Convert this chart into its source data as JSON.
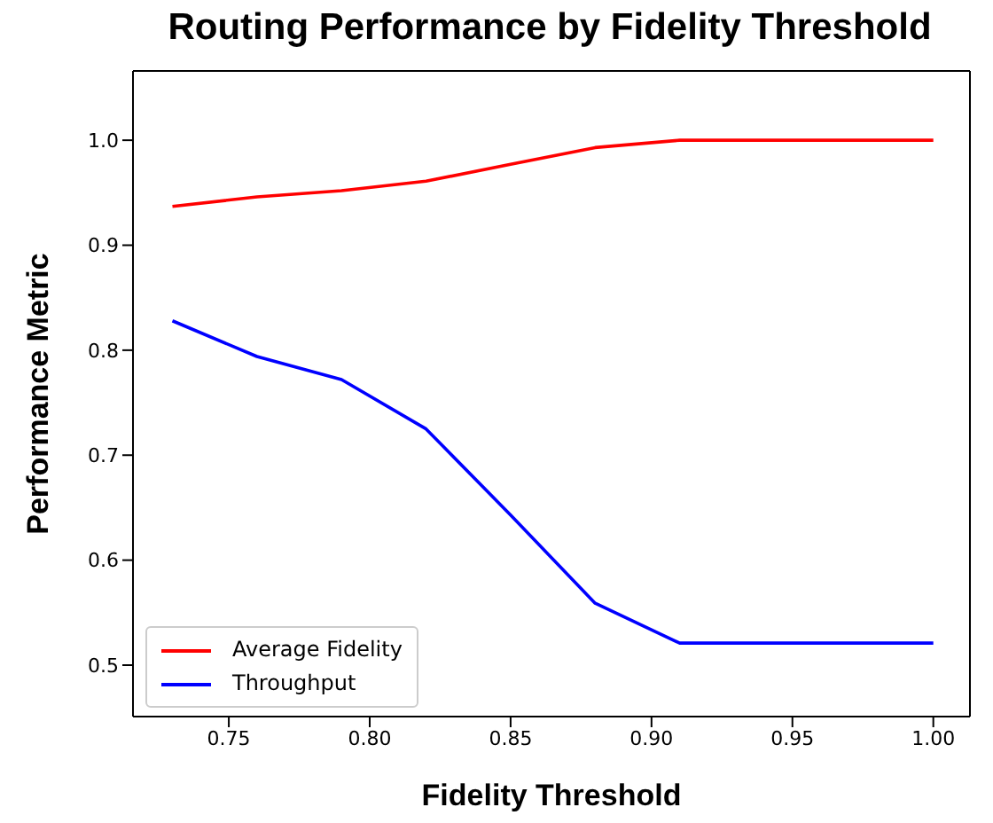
{
  "chart_data": {
    "type": "line",
    "title": "Routing Performance by Fidelity Threshold",
    "xlabel": "Fidelity Threshold",
    "ylabel": "Performance Metric",
    "x": [
      0.73,
      0.76,
      0.79,
      0.82,
      0.85,
      0.88,
      0.91,
      0.94,
      0.97,
      1.0
    ],
    "series": [
      {
        "name": "Average Fidelity",
        "color": "#ff0000",
        "values": [
          0.937,
          0.946,
          0.952,
          0.961,
          0.977,
          0.993,
          1.0,
          1.0,
          1.0,
          1.0
        ]
      },
      {
        "name": "Throughput",
        "color": "#0000ff",
        "values": [
          0.828,
          0.794,
          0.772,
          0.725,
          0.643,
          0.559,
          0.521,
          0.521,
          0.521,
          0.521
        ]
      }
    ],
    "xlim": [
      0.716,
      1.013
    ],
    "xticks": [
      {
        "value": 0.75,
        "label": "0.75"
      },
      {
        "value": 0.8,
        "label": "0.80"
      },
      {
        "value": 0.85,
        "label": "0.85"
      },
      {
        "value": 0.9,
        "label": "0.90"
      },
      {
        "value": 0.95,
        "label": "0.95"
      },
      {
        "value": 1.0,
        "label": "1.00"
      }
    ],
    "ylim": [
      0.451,
      1.066
    ],
    "yticks": [
      0.5,
      0.6,
      0.7,
      0.8,
      0.9,
      {
        "value": 1.0,
        "label": "1.0"
      }
    ],
    "grid": false,
    "legend": "bottom left"
  }
}
